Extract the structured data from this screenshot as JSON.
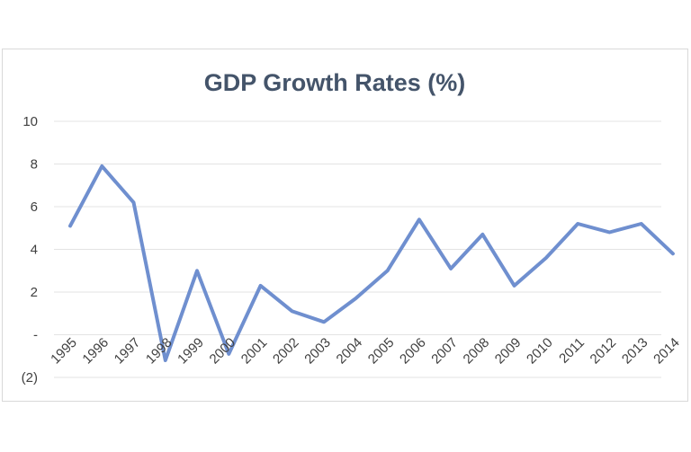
{
  "chart_data": {
    "type": "line",
    "title": "GDP Growth Rates (%)",
    "xlabel": "",
    "ylabel": "",
    "x": [
      "1995",
      "1996",
      "1997",
      "1998",
      "1999",
      "2000",
      "2001",
      "2002",
      "2003",
      "2004",
      "2005",
      "2006",
      "2007",
      "2008",
      "2009",
      "2010",
      "2011",
      "2012",
      "2013",
      "2014"
    ],
    "series": [
      {
        "values": [
          5.1,
          7.9,
          6.2,
          -1.2,
          3.0,
          -0.9,
          2.3,
          1.1,
          0.6,
          1.7,
          3.0,
          5.4,
          3.1,
          4.7,
          2.3,
          3.6,
          5.2,
          4.8,
          5.2,
          3.8
        ]
      }
    ],
    "ylim": [
      -2,
      10
    ],
    "yticks": [
      10,
      8,
      6,
      4,
      2,
      0,
      -2
    ],
    "ytick_labels": [
      "10",
      "8",
      "6",
      "4",
      "2",
      "-",
      "(2)"
    ],
    "grid": true,
    "legend": "none",
    "colors": {
      "series": "#6f8fcf",
      "title": "#44546a",
      "grid": "#e3e3e3"
    }
  }
}
